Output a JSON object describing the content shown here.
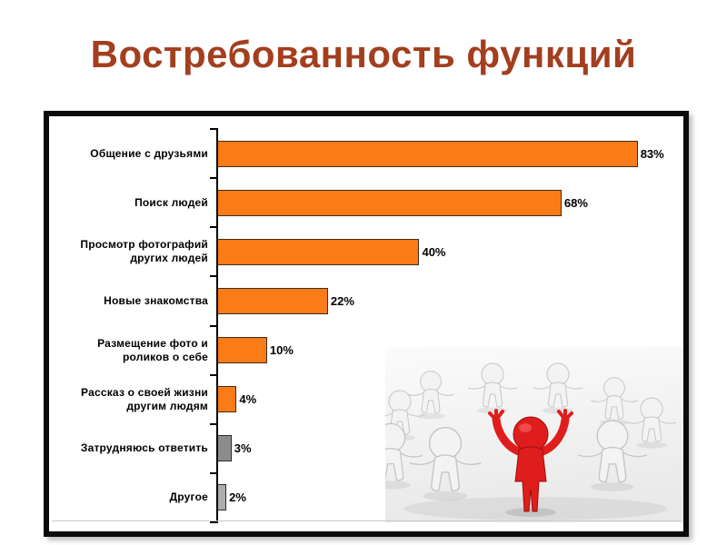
{
  "slide": {
    "title": "Востребованность функций"
  },
  "colors": {
    "title": "#A33E1E",
    "bar_orange": "#FA7B17",
    "bar_dark_gray": "#8C8C8C",
    "bar_light_gray": "#ADADAD",
    "bar_border_orange": "#3C2E1E",
    "bar_border_gray": "#2B2B2B",
    "frame_border": "#0B0B0B",
    "red_figure": "#E01D1D"
  },
  "chart_data": {
    "type": "bar",
    "orientation": "horizontal",
    "title": "",
    "xlabel": "",
    "ylabel": "",
    "axis_max": 92,
    "grid": false,
    "legend": false,
    "categories": [
      "Общение с друзьями",
      "Поиск людей",
      "Просмотр фотографий других людей",
      "Новые знакомства",
      "Размещение фото и роликов о себе",
      "Рассказ о своей жизни другим людям",
      "Затрудняюсь ответить",
      "Другое"
    ],
    "values": [
      83,
      68,
      40,
      22,
      10,
      4,
      3,
      2
    ],
    "value_labels": [
      "83%",
      "68%",
      "40%",
      "22%",
      "10%",
      "4%",
      "3%",
      "2%"
    ],
    "bar_colors": [
      "#FA7B17",
      "#FA7B17",
      "#FA7B17",
      "#FA7B17",
      "#FA7B17",
      "#FA7B17",
      "#8C8C8C",
      "#ADADAD"
    ],
    "bar_border_colors": [
      "#3C2E1E",
      "#3C2E1E",
      "#3C2E1E",
      "#3C2E1E",
      "#3C2E1E",
      "#3C2E1E",
      "#2B2B2B",
      "#2B2B2B"
    ]
  },
  "illustration": {
    "name": "people-circle-red-leader"
  }
}
